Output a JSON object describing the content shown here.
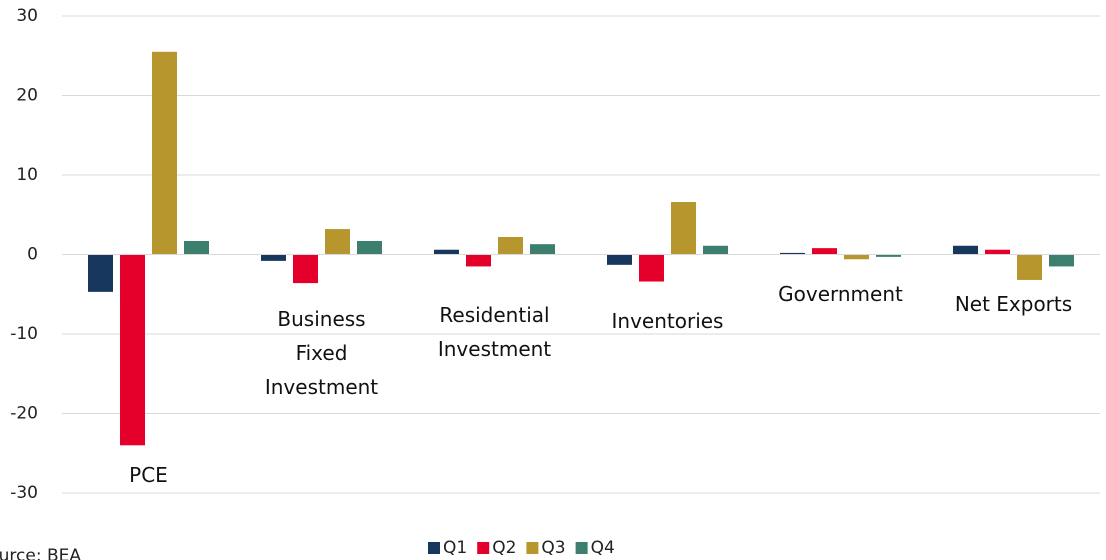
{
  "chart_data": {
    "type": "bar",
    "categories": [
      "PCE",
      "Business Fixed Investment",
      "Residential Investment",
      "Inventories",
      "Government",
      "Net Exports"
    ],
    "series": [
      {
        "name": "Q1",
        "color": "#17375e",
        "values": [
          -4.7,
          -0.8,
          0.6,
          -1.3,
          0.2,
          1.1
        ]
      },
      {
        "name": "Q2",
        "color": "#e4002b",
        "values": [
          -24,
          -3.6,
          -1.5,
          -3.4,
          0.8,
          0.6
        ]
      },
      {
        "name": "Q3",
        "color": "#b8962e",
        "values": [
          25.5,
          3.2,
          2.2,
          6.6,
          -0.6,
          -3.2
        ]
      },
      {
        "name": "Q4",
        "color": "#3d7f6e",
        "values": [
          1.7,
          1.7,
          1.3,
          1.1,
          -0.3,
          -1.5
        ]
      }
    ],
    "ylim": [
      -30,
      30
    ],
    "yticks": [
      -30,
      -20,
      -10,
      0,
      10,
      20,
      30
    ],
    "grid": true,
    "legend": "bottom",
    "note": "Source: BEA"
  }
}
